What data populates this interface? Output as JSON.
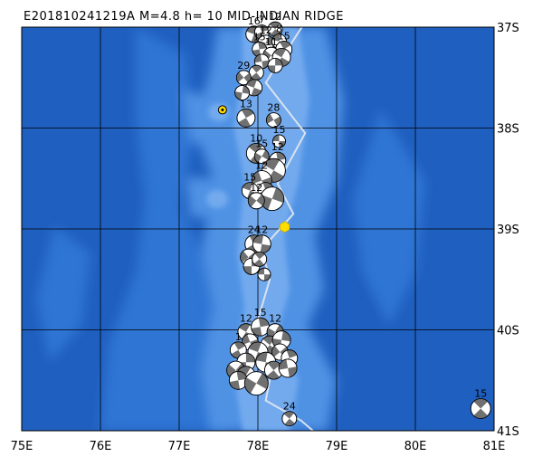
{
  "title": "E201810241219A  M=4.8  h=  10  MID-INDIAN RIDGE",
  "map": {
    "lon_range": [
      75,
      81
    ],
    "lat_range": [
      -41,
      -37
    ],
    "lon_ticks": [
      {
        "value": 75,
        "label": "75E"
      },
      {
        "value": 76,
        "label": "76E"
      },
      {
        "value": 77,
        "label": "77E"
      },
      {
        "value": 78,
        "label": "78E"
      },
      {
        "value": 79,
        "label": "79E"
      },
      {
        "value": 80,
        "label": "80E"
      },
      {
        "value": 81,
        "label": "81E"
      }
    ],
    "lat_ticks": [
      {
        "value": -37,
        "label": "37S"
      },
      {
        "value": -38,
        "label": "38S"
      },
      {
        "value": -39,
        "label": "39S"
      },
      {
        "value": -40,
        "label": "40S"
      },
      {
        "value": -41,
        "label": "41S"
      }
    ],
    "grid": true,
    "colors": {
      "ocean_deep": "#1f5fbf",
      "ocean_mid": "#2d74d4",
      "ridge_shallow": "#4f92e4",
      "ridge_crest": "#73aaee",
      "grid": "#000000",
      "plate_boundary": "#d8e2f0",
      "focal_dark": "#707070",
      "focal_light": "#ffffff",
      "main_event": "#ffdd00",
      "volcano": "#ffdd00"
    },
    "plate_boundary": [
      [
        78.6,
        -36.95
      ],
      [
        78.1,
        -37.55
      ],
      [
        78.6,
        -38.05
      ],
      [
        78.25,
        -38.55
      ],
      [
        78.45,
        -38.85
      ],
      [
        78.05,
        -39.2
      ],
      [
        78.15,
        -39.5
      ],
      [
        78.0,
        -39.9
      ],
      [
        78.2,
        -40.3
      ],
      [
        78.1,
        -40.7
      ],
      [
        78.55,
        -40.9
      ],
      [
        78.7,
        -41.0
      ]
    ],
    "main_event": {
      "lon": 78.34,
      "lat": -38.98
    },
    "volcano": {
      "lon": 77.55,
      "lat": -37.82
    }
  },
  "focal_mechanisms": [
    {
      "lon": 77.95,
      "lat": -37.07,
      "depth": "16",
      "size": 9,
      "rot": 20
    },
    {
      "lon": 78.05,
      "lat": -37.05,
      "depth": "7",
      "size": 8,
      "rot": 70
    },
    {
      "lon": 78.22,
      "lat": -37.02,
      "depth": "12",
      "size": 8,
      "rot": 40
    },
    {
      "lon": 78.1,
      "lat": -37.16,
      "depth": "12",
      "size": 9,
      "rot": 110
    },
    {
      "lon": 78.27,
      "lat": -37.14,
      "depth": "8",
      "size": 8,
      "rot": 10
    },
    {
      "lon": 78.02,
      "lat": -37.22,
      "depth": "15",
      "size": 8,
      "rot": 80
    },
    {
      "lon": 78.33,
      "lat": -37.22,
      "depth": "15",
      "size": 9,
      "rot": 60
    },
    {
      "lon": 78.17,
      "lat": -37.28,
      "depth": "11",
      "size": 9,
      "rot": 130
    },
    {
      "lon": 78.3,
      "lat": -37.3,
      "depth": "",
      "size": 10,
      "rot": 30
    },
    {
      "lon": 78.05,
      "lat": -37.34,
      "depth": "",
      "size": 8,
      "rot": 170
    },
    {
      "lon": 78.22,
      "lat": -37.38,
      "depth": "",
      "size": 8,
      "rot": 90
    },
    {
      "lon": 77.98,
      "lat": -37.45,
      "depth": "",
      "size": 8,
      "rot": 50
    },
    {
      "lon": 77.82,
      "lat": -37.5,
      "depth": "29",
      "size": 8,
      "rot": 140
    },
    {
      "lon": 77.95,
      "lat": -37.6,
      "depth": "",
      "size": 9,
      "rot": 20
    },
    {
      "lon": 77.8,
      "lat": -37.65,
      "depth": "",
      "size": 8,
      "rot": 100
    },
    {
      "lon": 77.85,
      "lat": -37.9,
      "depth": "13",
      "size": 10,
      "rot": 60
    },
    {
      "lon": 78.2,
      "lat": -37.92,
      "depth": "28",
      "size": 8,
      "rot": 150
    },
    {
      "lon": 78.27,
      "lat": -38.13,
      "depth": "15",
      "size": 7,
      "rot": 0
    },
    {
      "lon": 77.98,
      "lat": -38.25,
      "depth": "10",
      "size": 11,
      "rot": 40
    },
    {
      "lon": 78.05,
      "lat": -38.28,
      "depth": "15",
      "size": 8,
      "rot": 120
    },
    {
      "lon": 78.25,
      "lat": -38.32,
      "depth": "12",
      "size": 9,
      "rot": 80
    },
    {
      "lon": 78.2,
      "lat": -38.42,
      "depth": "",
      "size": 13,
      "rot": 30
    },
    {
      "lon": 78.05,
      "lat": -38.52,
      "depth": "12",
      "size": 11,
      "rot": 160
    },
    {
      "lon": 78.1,
      "lat": -38.62,
      "depth": "",
      "size": 9,
      "rot": 70
    },
    {
      "lon": 78.18,
      "lat": -38.7,
      "depth": "",
      "size": 13,
      "rot": 110
    },
    {
      "lon": 77.9,
      "lat": -38.62,
      "depth": "15",
      "size": 9,
      "rot": 20
    },
    {
      "lon": 77.98,
      "lat": -38.72,
      "depth": "12",
      "size": 9,
      "rot": 130
    },
    {
      "lon": 77.95,
      "lat": -39.15,
      "depth": "24",
      "size": 10,
      "rot": 60
    },
    {
      "lon": 78.05,
      "lat": -39.15,
      "depth": "12",
      "size": 10,
      "rot": 10
    },
    {
      "lon": 77.88,
      "lat": -39.28,
      "depth": "",
      "size": 9,
      "rot": 140
    },
    {
      "lon": 77.92,
      "lat": -39.37,
      "depth": "",
      "size": 9,
      "rot": 90
    },
    {
      "lon": 78.02,
      "lat": -39.3,
      "depth": "",
      "size": 8,
      "rot": 50
    },
    {
      "lon": 78.08,
      "lat": -39.45,
      "depth": "",
      "size": 7,
      "rot": 0
    },
    {
      "lon": 77.85,
      "lat": -40.02,
      "depth": "12",
      "size": 9,
      "rot": 30
    },
    {
      "lon": 78.03,
      "lat": -39.97,
      "depth": "15",
      "size": 10,
      "rot": 80
    },
    {
      "lon": 78.22,
      "lat": -40.02,
      "depth": "12",
      "size": 9,
      "rot": 120
    },
    {
      "lon": 77.9,
      "lat": -40.12,
      "depth": "",
      "size": 9,
      "rot": 160
    },
    {
      "lon": 78.15,
      "lat": -40.15,
      "depth": "",
      "size": 10,
      "rot": 40
    },
    {
      "lon": 78.3,
      "lat": -40.1,
      "depth": "",
      "size": 10,
      "rot": 100
    },
    {
      "lon": 77.75,
      "lat": -40.2,
      "depth": "1",
      "size": 9,
      "rot": 60
    },
    {
      "lon": 78.0,
      "lat": -40.22,
      "depth": "",
      "size": 11,
      "rot": 20
    },
    {
      "lon": 78.28,
      "lat": -40.22,
      "depth": "",
      "size": 9,
      "rot": 140
    },
    {
      "lon": 77.85,
      "lat": -40.32,
      "depth": "",
      "size": 10,
      "rot": 90
    },
    {
      "lon": 78.1,
      "lat": -40.32,
      "depth": "",
      "size": 11,
      "rot": 10
    },
    {
      "lon": 78.4,
      "lat": -40.28,
      "depth": "",
      "size": 9,
      "rot": 70
    },
    {
      "lon": 77.72,
      "lat": -40.4,
      "depth": "",
      "size": 10,
      "rot": 130
    },
    {
      "lon": 78.2,
      "lat": -40.4,
      "depth": "",
      "size": 10,
      "rot": 50
    },
    {
      "lon": 78.38,
      "lat": -40.38,
      "depth": "",
      "size": 10,
      "rot": 170
    },
    {
      "lon": 77.85,
      "lat": -40.45,
      "depth": "",
      "size": 10,
      "rot": 30
    },
    {
      "lon": 77.75,
      "lat": -40.5,
      "depth": "",
      "size": 10,
      "rot": 80
    },
    {
      "lon": 77.98,
      "lat": -40.53,
      "depth": "",
      "size": 13,
      "rot": 120
    },
    {
      "lon": 78.4,
      "lat": -40.88,
      "depth": "24",
      "size": 8,
      "rot": 40
    },
    {
      "lon": 80.83,
      "lat": -40.78,
      "depth": "15",
      "size": 11,
      "rot": 45
    }
  ]
}
